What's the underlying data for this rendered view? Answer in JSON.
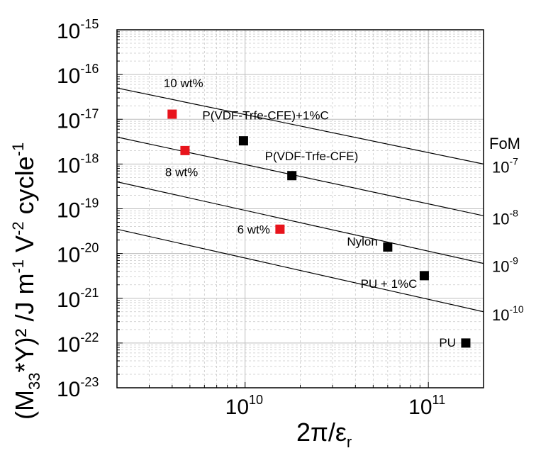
{
  "chart_data": {
    "type": "scatter",
    "x_scale": "log",
    "y_scale": "log",
    "xlim": [
      2000000000.0,
      200000000000.0
    ],
    "ylim": [
      1e-23,
      1e-15
    ],
    "grid": true,
    "xlabel": {
      "base": "2π/ε",
      "sub": "r"
    },
    "ylabel": {
      "p1": "(M",
      "sub": "33",
      "p2": "*Y)² /J m",
      "sup1": "-1",
      "p3": " V",
      "sup2": "-2",
      "p4": " cycle",
      "sup3": "-1"
    },
    "x_ticks": [
      {
        "value": 10000000000.0,
        "base": "10",
        "exp": "10"
      },
      {
        "value": 100000000000.0,
        "base": "10",
        "exp": "11"
      }
    ],
    "y_ticks": [
      {
        "value": 1e-15,
        "base": "10",
        "exp": "-15"
      },
      {
        "value": 1e-16,
        "base": "10",
        "exp": "-16"
      },
      {
        "value": 1e-17,
        "base": "10",
        "exp": "-17"
      },
      {
        "value": 1e-18,
        "base": "10",
        "exp": "-18"
      },
      {
        "value": 1e-19,
        "base": "10",
        "exp": "-19"
      },
      {
        "value": 1e-20,
        "base": "10",
        "exp": "-20"
      },
      {
        "value": 1e-21,
        "base": "10",
        "exp": "-21"
      },
      {
        "value": 1e-22,
        "base": "10",
        "exp": "-22"
      },
      {
        "value": 1e-23,
        "base": "10",
        "exp": "-23"
      }
    ],
    "fom": {
      "title": "FoM",
      "lines": [
        {
          "fom": "1e-7",
          "base": "10",
          "exp": "-7",
          "y_at_xmin": 5e-17,
          "y_at_xmax": 1e-18
        },
        {
          "fom": "1e-8",
          "base": "10",
          "exp": "-8",
          "y_at_xmin": 4e-18,
          "y_at_xmax": 7e-20
        },
        {
          "fom": "1e-9",
          "base": "10",
          "exp": "-9",
          "y_at_xmin": 4e-19,
          "y_at_xmax": 6e-21
        },
        {
          "fom": "1e-10",
          "base": "10",
          "exp": "-10",
          "y_at_xmin": 3.5e-20,
          "y_at_xmax": 5e-22
        }
      ]
    },
    "series": [
      {
        "color": "#e8141c",
        "points": [
          {
            "x": 4000000000.0,
            "y": 1.3e-17,
            "label": "10 wt%"
          },
          {
            "x": 4700000000.0,
            "y": 2e-18,
            "label": "8 wt%"
          },
          {
            "x": 15500000000.0,
            "y": 3.5e-20,
            "label": "6 wt%"
          }
        ]
      },
      {
        "color": "#000000",
        "points": [
          {
            "x": 9800000000.0,
            "y": 3.3e-18,
            "label": "P(VDF-Trfe-CFE)+1%C"
          },
          {
            "x": 18000000000.0,
            "y": 5.5e-19,
            "label": "P(VDF-Trfe-CFE)"
          },
          {
            "x": 60000000000.0,
            "y": 1.4e-20,
            "label": "Nylon"
          },
          {
            "x": 95000000000.0,
            "y": 3.2e-21,
            "label": "PU + 1%C"
          },
          {
            "x": 160000000000.0,
            "y": 1e-22,
            "label": "PU"
          }
        ]
      }
    ]
  }
}
